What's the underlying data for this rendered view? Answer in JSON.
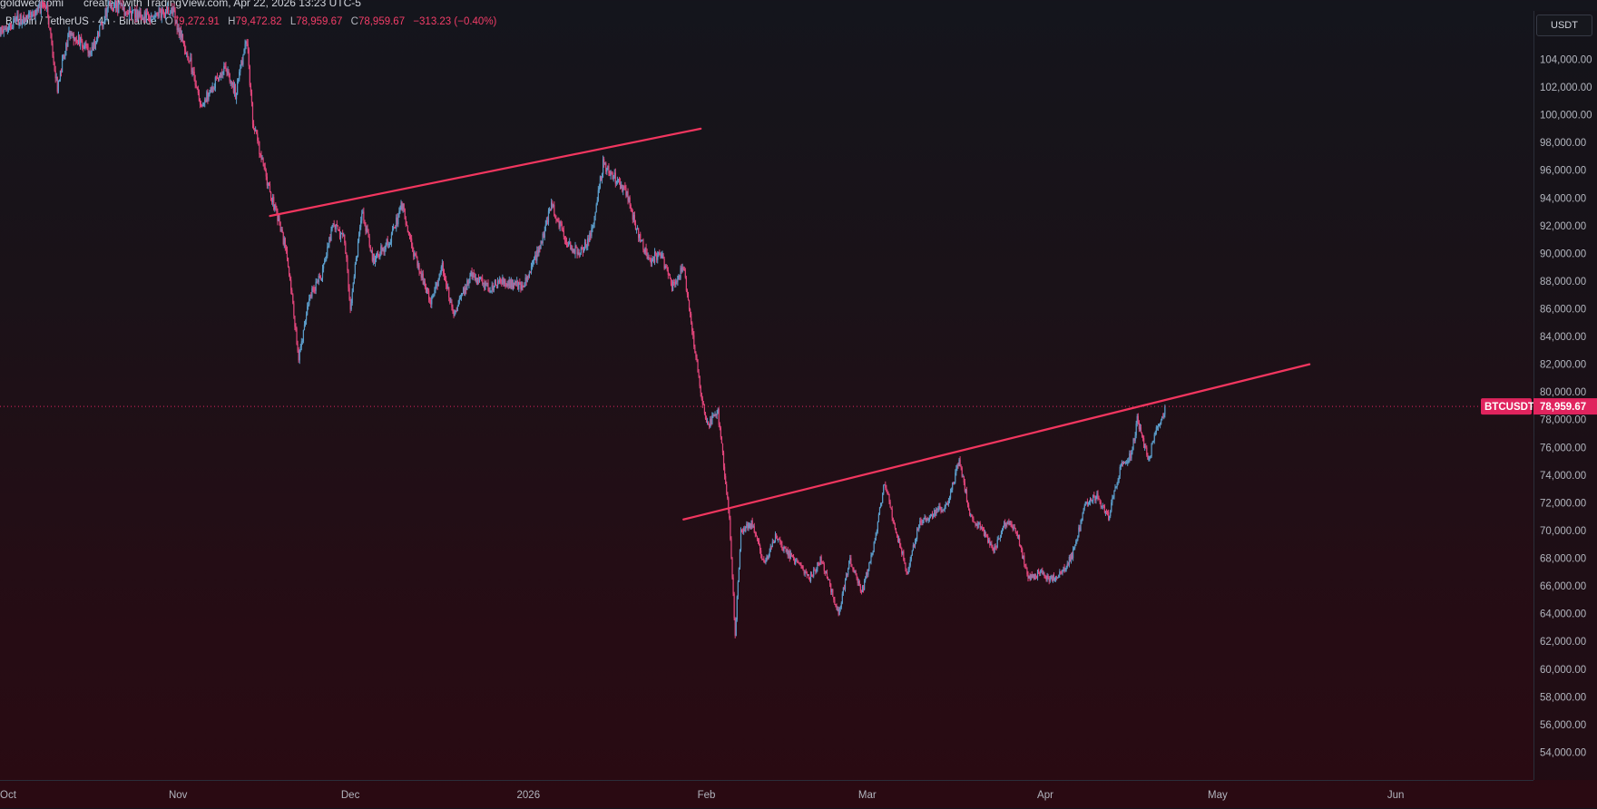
{
  "header": {
    "publisher": "goldwedsomi",
    "created_text": "created with TradingView.com, Apr 22, 2026 13:23 UTC-5"
  },
  "legend": {
    "symbol": "Bitcoin / TetherUS · 4h · Binance",
    "open_label": "O",
    "open_value": "79,272.91",
    "high_label": "H",
    "high_value": "79,472.82",
    "low_label": "L",
    "low_value": "78,959.67",
    "close_label": "C",
    "close_value": "78,959.67",
    "change": "−313.23 (−0.40%)"
  },
  "price_scale": {
    "currency": "USDT",
    "current_symbol": "BTCUSDT",
    "current_price": "78,959.67"
  },
  "colors": {
    "up": "#5b9cc9",
    "down": "#e0457a",
    "trendline": "#f2365f",
    "price_tag": "#e0245e"
  },
  "chart_data": {
    "type": "candlestick",
    "title": "Bitcoin / TetherUS · 4h · Binance",
    "xlabel": "",
    "ylabel": "",
    "ylim": [
      52000,
      107500
    ],
    "y_ticks": [
      "104,000.00",
      "102,000.00",
      "100,000.00",
      "98,000.00",
      "96,000.00",
      "94,000.00",
      "92,000.00",
      "90,000.00",
      "88,000.00",
      "86,000.00",
      "84,000.00",
      "82,000.00",
      "80,000.00",
      "78,000.00",
      "76,000.00",
      "74,000.00",
      "72,000.00",
      "70,000.00",
      "68,000.00",
      "66,000.00",
      "64,000.00",
      "62,000.00",
      "60,000.00",
      "58,000.00",
      "56,000.00",
      "54,000.00"
    ],
    "x_ticks": [
      "Oct",
      "Nov",
      "Dec",
      "2026",
      "Feb",
      "Mar",
      "Apr",
      "May",
      "Jun"
    ],
    "x_start": "2025-10-01",
    "x_end": "2026-06-25",
    "price_path": [
      [
        "2025-10-01",
        106000
      ],
      [
        "2025-10-09",
        108000
      ],
      [
        "2025-10-10",
        105000
      ],
      [
        "2025-10-11",
        102000
      ],
      [
        "2025-10-13",
        106000
      ],
      [
        "2025-10-17",
        104500
      ],
      [
        "2025-10-20",
        108000
      ],
      [
        "2025-10-26",
        107000
      ],
      [
        "2025-10-31",
        107500
      ],
      [
        "2025-11-03",
        104000
      ],
      [
        "2025-11-05",
        100500
      ],
      [
        "2025-11-07",
        102000
      ],
      [
        "2025-11-09",
        103500
      ],
      [
        "2025-11-11",
        101500
      ],
      [
        "2025-11-13",
        105500
      ],
      [
        "2025-11-14",
        99500
      ],
      [
        "2025-11-16",
        96000
      ],
      [
        "2025-11-18",
        93000
      ],
      [
        "2025-11-20",
        90000
      ],
      [
        "2025-11-22",
        82500
      ],
      [
        "2025-11-24",
        87000
      ],
      [
        "2025-11-26",
        88500
      ],
      [
        "2025-11-28",
        92000
      ],
      [
        "2025-11-30",
        91000
      ],
      [
        "2025-12-01",
        86000
      ],
      [
        "2025-12-03",
        93000
      ],
      [
        "2025-12-05",
        89500
      ],
      [
        "2025-12-08",
        91000
      ],
      [
        "2025-12-10",
        93500
      ],
      [
        "2025-12-12",
        90000
      ],
      [
        "2025-12-15",
        86500
      ],
      [
        "2025-12-17",
        89000
      ],
      [
        "2025-12-19",
        85500
      ],
      [
        "2025-12-22",
        88500
      ],
      [
        "2025-12-25",
        87500
      ],
      [
        "2025-12-28",
        88000
      ],
      [
        "2025-12-31",
        87500
      ],
      [
        "2026-01-03",
        90500
      ],
      [
        "2026-01-05",
        93500
      ],
      [
        "2026-01-08",
        90500
      ],
      [
        "2026-01-10",
        90000
      ],
      [
        "2026-01-12",
        91500
      ],
      [
        "2026-01-14",
        96500
      ],
      [
        "2026-01-16",
        95500
      ],
      [
        "2026-01-18",
        94500
      ],
      [
        "2026-01-20",
        91500
      ],
      [
        "2026-01-22",
        89500
      ],
      [
        "2026-01-24",
        90000
      ],
      [
        "2026-01-26",
        87500
      ],
      [
        "2026-01-28",
        89000
      ],
      [
        "2026-01-30",
        83000
      ],
      [
        "2026-02-01",
        77500
      ],
      [
        "2026-02-03",
        78500
      ],
      [
        "2026-02-05",
        71000
      ],
      [
        "2026-02-06",
        62500
      ],
      [
        "2026-02-07",
        70000
      ],
      [
        "2026-02-09",
        70500
      ],
      [
        "2026-02-11",
        67500
      ],
      [
        "2026-02-13",
        69500
      ],
      [
        "2026-02-15",
        68500
      ],
      [
        "2026-02-17",
        67500
      ],
      [
        "2026-02-19",
        66500
      ],
      [
        "2026-02-21",
        68000
      ],
      [
        "2026-02-24",
        64000
      ],
      [
        "2026-02-26",
        68000
      ],
      [
        "2026-02-28",
        65500
      ],
      [
        "2026-03-02",
        68500
      ],
      [
        "2026-03-04",
        73500
      ],
      [
        "2026-03-06",
        70000
      ],
      [
        "2026-03-08",
        67000
      ],
      [
        "2026-03-10",
        70500
      ],
      [
        "2026-03-12",
        71000
      ],
      [
        "2026-03-15",
        72000
      ],
      [
        "2026-03-17",
        75000
      ],
      [
        "2026-03-19",
        71000
      ],
      [
        "2026-03-21",
        70000
      ],
      [
        "2026-03-23",
        68500
      ],
      [
        "2026-03-25",
        70500
      ],
      [
        "2026-03-27",
        70000
      ],
      [
        "2026-03-29",
        66500
      ],
      [
        "2026-03-31",
        67000
      ],
      [
        "2026-04-02",
        66500
      ],
      [
        "2026-04-04",
        67000
      ],
      [
        "2026-04-06",
        68500
      ],
      [
        "2026-04-08",
        72000
      ],
      [
        "2026-04-10",
        72500
      ],
      [
        "2026-04-12",
        71000
      ],
      [
        "2026-04-14",
        74500
      ],
      [
        "2026-04-16",
        75500
      ],
      [
        "2026-04-17",
        78000
      ],
      [
        "2026-04-19",
        75000
      ],
      [
        "2026-04-20",
        77000
      ],
      [
        "2026-04-22",
        78959.67
      ]
    ],
    "trendlines": [
      {
        "start": [
          "2025-11-17",
          92700
        ],
        "end": [
          "2026-01-31",
          99000
        ]
      },
      {
        "start": [
          "2026-01-28",
          70800
        ],
        "end": [
          "2026-05-17",
          82000
        ]
      }
    ],
    "current_price": 78959.67,
    "grid": false,
    "legend_position": "top-left"
  }
}
